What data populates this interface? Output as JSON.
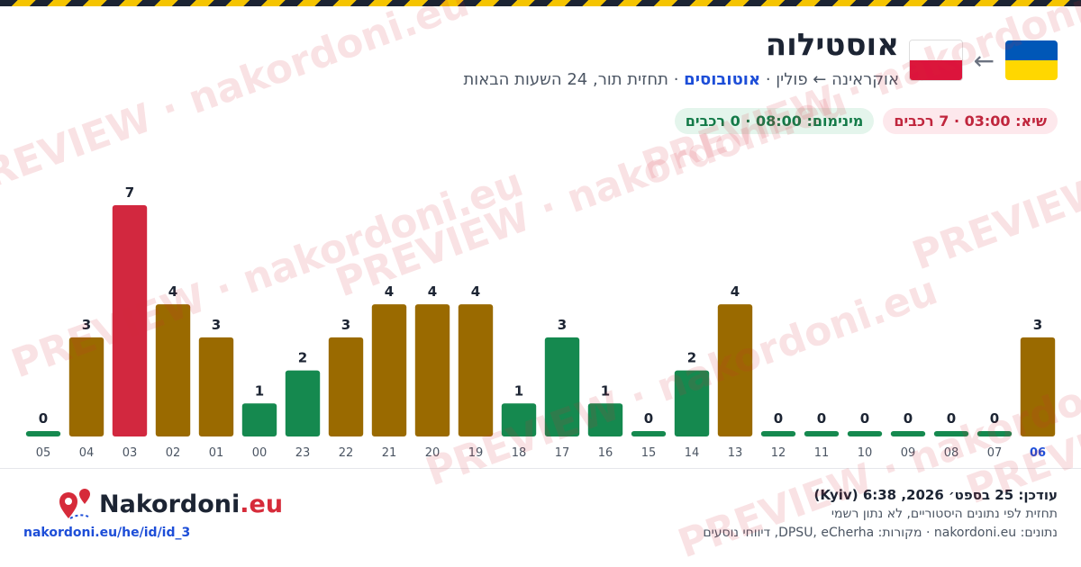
{
  "header": {
    "title": "אוסטילוה",
    "subtitle_start": "אוקראינה ← פולין ·",
    "subtitle_mode": "אוטובוסים",
    "subtitle_end": "· תחזית תור, 24 השעות הבאות",
    "peak": "שיא: 03:00 · 7 רכבים",
    "minimum": "מינימום: 08:00 · 0 רכבים"
  },
  "chart_data": {
    "type": "bar",
    "categories": [
      "06",
      "07",
      "08",
      "09",
      "10",
      "11",
      "12",
      "13",
      "14",
      "15",
      "16",
      "17",
      "18",
      "19",
      "20",
      "21",
      "22",
      "23",
      "00",
      "01",
      "02",
      "03",
      "04",
      "05"
    ],
    "values": [
      3,
      0,
      0,
      0,
      0,
      0,
      0,
      4,
      2,
      0,
      1,
      3,
      1,
      4,
      4,
      4,
      3,
      2,
      1,
      3,
      4,
      7,
      3,
      0
    ],
    "colors": [
      "#9a6a00",
      "#15894f",
      "#15894f",
      "#15894f",
      "#15894f",
      "#15894f",
      "#15894f",
      "#9a6a00",
      "#15894f",
      "#15894f",
      "#15894f",
      "#15894f",
      "#15894f",
      "#9a6a00",
      "#9a6a00",
      "#9a6a00",
      "#9a6a00",
      "#15894f",
      "#15894f",
      "#9a6a00",
      "#9a6a00",
      "#d2283f",
      "#9a6a00",
      "#15894f"
    ],
    "ylim": [
      0,
      7
    ],
    "direction": "rtl"
  },
  "footer": {
    "brand": "Nakordoni",
    "brand_tld": ".eu",
    "url": "nakordoni.eu/he/id/id_3",
    "updated": "עודכן: 25 בספט׳ 2026, 6:38 (Kyiv)",
    "note": "תחזית לפי נתונים היסטוריים, לא נתון רשמי",
    "sources": "נתונים: nakordoni.eu · מקורות: DPSU, eCherha, דיווחי נוסעים"
  },
  "watermark": "PREVIEW · nakordoni.eu"
}
